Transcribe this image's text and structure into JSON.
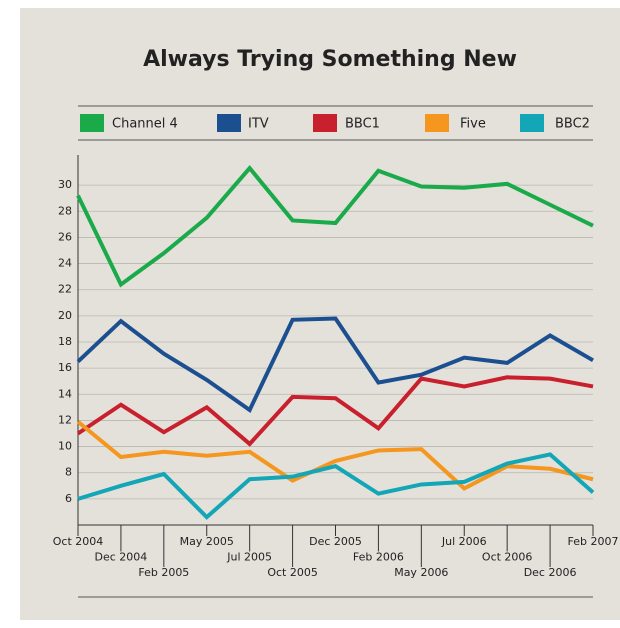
{
  "chart_data": {
    "type": "line",
    "title": "Always Trying Something New",
    "categories": [
      "Oct 2004",
      "Dec 2004",
      "Feb 2005",
      "May 2005",
      "Jul 2005",
      "Oct 2005",
      "Dec 2005",
      "Feb 2006",
      "May 2006",
      "Jul 2006",
      "Oct 2006",
      "Dec 2006",
      "Feb 2007"
    ],
    "series": [
      {
        "name": "Channel 4",
        "color": "#1aaa4a",
        "values": [
          29.2,
          22.4,
          24.8,
          27.5,
          31.3,
          27.3,
          27.1,
          31.1,
          29.9,
          29.8,
          30.1,
          28.5,
          26.9
        ]
      },
      {
        "name": "ITV",
        "color": "#1c4f8f",
        "values": [
          16.5,
          19.6,
          17.1,
          15.1,
          12.8,
          19.7,
          19.8,
          14.9,
          15.5,
          16.8,
          16.4,
          18.5,
          16.6
        ]
      },
      {
        "name": "BBC1",
        "color": "#c8202c",
        "values": [
          11.0,
          13.2,
          11.1,
          13.0,
          10.2,
          13.8,
          13.7,
          11.4,
          15.2,
          14.6,
          15.3,
          15.2,
          14.6
        ]
      },
      {
        "name": "Five",
        "color": "#f5961e",
        "values": [
          11.9,
          9.2,
          9.6,
          9.3,
          9.6,
          7.4,
          8.9,
          9.7,
          9.8,
          6.8,
          8.5,
          8.3,
          7.5
        ]
      },
      {
        "name": "BBC2",
        "color": "#13a6b6",
        "values": [
          6.0,
          7.0,
          7.9,
          4.6,
          7.5,
          7.7,
          8.5,
          6.4,
          7.1,
          7.3,
          8.7,
          9.4,
          6.5
        ]
      }
    ],
    "ylim": [
      4,
      32
    ],
    "yticks": [
      6,
      8,
      10,
      12,
      14,
      16,
      18,
      20,
      22,
      24,
      26,
      28,
      30
    ],
    "grid": true,
    "legend": "top"
  }
}
